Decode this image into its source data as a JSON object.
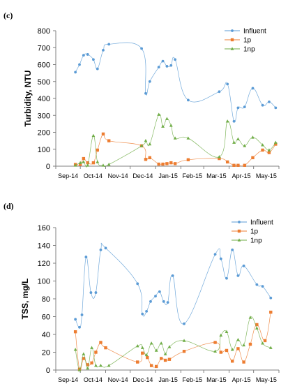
{
  "chart_data": [
    {
      "type": "line",
      "panel_label": "(c)",
      "ylabel": "Turbidity, NTU",
      "xlabel": "",
      "ylim": [
        0,
        800
      ],
      "yticks": [
        0,
        100,
        200,
        300,
        400,
        500,
        600,
        700,
        800
      ],
      "xlim": [
        "2014-09-01",
        "2015-06-01"
      ],
      "xticks": [
        "Sep-14",
        "Oct-14",
        "Nov-14",
        "Dec-14",
        "Jan-15",
        "Feb-15",
        "Mar-15",
        "Apr-15",
        "May-15"
      ],
      "legend_position": "top-right",
      "grid": false,
      "series": [
        {
          "name": "Influent",
          "color": "#5b9bd5",
          "marker": "circle",
          "points": [
            [
              "2014-09-25",
              555
            ],
            [
              "2014-09-30",
              600
            ],
            [
              "2014-10-05",
              655
            ],
            [
              "2014-10-10",
              660
            ],
            [
              "2014-10-17",
              630
            ],
            [
              "2014-10-22",
              575
            ],
            [
              "2014-10-29",
              685
            ],
            [
              "2014-11-05",
              720
            ],
            [
              "2014-12-15",
              695
            ],
            [
              "2014-12-20",
              430
            ],
            [
              "2014-12-25",
              500
            ],
            [
              "2015-01-05",
              585
            ],
            [
              "2015-01-10",
              620
            ],
            [
              "2015-01-15",
              590
            ],
            [
              "2015-01-20",
              595
            ],
            [
              "2015-01-25",
              630
            ],
            [
              "2015-02-10",
              390
            ],
            [
              "2015-03-20",
              440
            ],
            [
              "2015-03-30",
              485
            ],
            [
              "2015-04-07",
              265
            ],
            [
              "2015-04-12",
              345
            ],
            [
              "2015-04-20",
              350
            ],
            [
              "2015-04-30",
              460
            ],
            [
              "2015-05-12",
              360
            ],
            [
              "2015-05-20",
              380
            ],
            [
              "2015-05-28",
              345
            ]
          ]
        },
        {
          "name": "1p",
          "color": "#ed7d31",
          "marker": "square",
          "points": [
            [
              "2014-09-25",
              10
            ],
            [
              "2014-10-01",
              10
            ],
            [
              "2014-10-05",
              45
            ],
            [
              "2014-10-10",
              20
            ],
            [
              "2014-10-17",
              20
            ],
            [
              "2014-10-22",
              95
            ],
            [
              "2014-10-29",
              190
            ],
            [
              "2014-11-05",
              150
            ],
            [
              "2014-12-15",
              120
            ],
            [
              "2014-12-20",
              40
            ],
            [
              "2014-12-25",
              50
            ],
            [
              "2015-01-05",
              12
            ],
            [
              "2015-01-10",
              12
            ],
            [
              "2015-01-15",
              15
            ],
            [
              "2015-01-20",
              20
            ],
            [
              "2015-01-25",
              15
            ],
            [
              "2015-02-10",
              38
            ],
            [
              "2015-03-20",
              45
            ],
            [
              "2015-03-30",
              25
            ],
            [
              "2015-04-07",
              5
            ],
            [
              "2015-04-12",
              5
            ],
            [
              "2015-04-20",
              5
            ],
            [
              "2015-04-30",
              50
            ],
            [
              "2015-05-12",
              95
            ],
            [
              "2015-05-20",
              80
            ],
            [
              "2015-05-28",
              130
            ]
          ]
        },
        {
          "name": "1np",
          "color": "#70ad47",
          "marker": "triangle",
          "points": [
            [
              "2014-09-25",
              5
            ],
            [
              "2014-10-01",
              20
            ],
            [
              "2014-10-05",
              25
            ],
            [
              "2014-10-10",
              5
            ],
            [
              "2014-10-17",
              180
            ],
            [
              "2014-10-22",
              25
            ],
            [
              "2014-10-29",
              5
            ],
            [
              "2014-11-05",
              10
            ],
            [
              "2014-12-15",
              120
            ],
            [
              "2014-12-20",
              150
            ],
            [
              "2014-12-25",
              130
            ],
            [
              "2015-01-05",
              305
            ],
            [
              "2015-01-10",
              235
            ],
            [
              "2015-01-15",
              280
            ],
            [
              "2015-01-20",
              240
            ],
            [
              "2015-01-25",
              165
            ],
            [
              "2015-02-10",
              165
            ],
            [
              "2015-03-20",
              55
            ],
            [
              "2015-03-30",
              265
            ],
            [
              "2015-04-07",
              140
            ],
            [
              "2015-04-12",
              160
            ],
            [
              "2015-04-20",
              120
            ],
            [
              "2015-04-30",
              170
            ],
            [
              "2015-05-12",
              125
            ],
            [
              "2015-05-20",
              95
            ],
            [
              "2015-05-28",
              140
            ]
          ]
        }
      ]
    },
    {
      "type": "line",
      "panel_label": "(d)",
      "ylabel": "TSS, mg/L",
      "xlabel": "",
      "ylim": [
        0,
        160
      ],
      "yticks": [
        0,
        20,
        40,
        60,
        80,
        100,
        120,
        140,
        160
      ],
      "xlim": [
        "2014-09-01",
        "2015-06-01"
      ],
      "xticks": [
        "Sep-14",
        "Oct-14",
        "Nov-14",
        "Dec-14",
        "Jan-15",
        "Feb-15",
        "Mar-15",
        "Apr-15",
        "May-15"
      ],
      "legend_position": "top-right",
      "grid": false,
      "series": [
        {
          "name": "Influent",
          "color": "#5b9bd5",
          "marker": "circle",
          "points": [
            [
              "2014-09-25",
              57
            ],
            [
              "2014-09-30",
              48
            ],
            [
              "2014-10-03",
              62
            ],
            [
              "2014-10-08",
              127
            ],
            [
              "2014-10-14",
              87
            ],
            [
              "2014-10-20",
              87
            ],
            [
              "2014-10-26",
              135
            ],
            [
              "2014-11-01",
              137
            ],
            [
              "2014-12-10",
              97
            ],
            [
              "2014-12-16",
              63
            ],
            [
              "2014-12-21",
              66
            ],
            [
              "2014-12-26",
              77
            ],
            [
              "2015-01-01",
              83
            ],
            [
              "2015-01-06",
              88
            ],
            [
              "2015-01-11",
              77
            ],
            [
              "2015-01-16",
              76
            ],
            [
              "2015-01-22",
              106
            ],
            [
              "2015-02-05",
              52
            ],
            [
              "2015-03-15",
              130
            ],
            [
              "2015-03-22",
              125
            ],
            [
              "2015-03-29",
              103
            ],
            [
              "2015-04-05",
              135
            ],
            [
              "2015-04-12",
              106
            ],
            [
              "2015-04-19",
              117
            ],
            [
              "2015-05-05",
              96
            ],
            [
              "2015-05-12",
              94
            ],
            [
              "2015-05-22",
              81
            ]
          ]
        },
        {
          "name": "1p",
          "color": "#ed7d31",
          "marker": "square",
          "points": [
            [
              "2014-09-25",
              43
            ],
            [
              "2014-09-30",
              1
            ],
            [
              "2014-10-05",
              13
            ],
            [
              "2014-10-10",
              6
            ],
            [
              "2014-10-15",
              8
            ],
            [
              "2014-10-20",
              20
            ],
            [
              "2014-10-26",
              31
            ],
            [
              "2014-11-01",
              25
            ],
            [
              "2014-12-10",
              9
            ],
            [
              "2014-12-16",
              19
            ],
            [
              "2014-12-22",
              14
            ],
            [
              "2014-12-27",
              5
            ],
            [
              "2015-01-02",
              4
            ],
            [
              "2015-01-08",
              13
            ],
            [
              "2015-01-13",
              11
            ],
            [
              "2015-01-18",
              12
            ],
            [
              "2015-02-05",
              21
            ],
            [
              "2015-03-15",
              31
            ],
            [
              "2015-03-22",
              20
            ],
            [
              "2015-03-29",
              22
            ],
            [
              "2015-04-05",
              10
            ],
            [
              "2015-04-12",
              24
            ],
            [
              "2015-04-19",
              9
            ],
            [
              "2015-04-27",
              29
            ],
            [
              "2015-05-05",
              51
            ],
            [
              "2015-05-15",
              33
            ],
            [
              "2015-05-22",
              65
            ]
          ]
        },
        {
          "name": "1np",
          "color": "#70ad47",
          "marker": "triangle",
          "points": [
            [
              "2014-09-25",
              23
            ],
            [
              "2014-09-30",
              0
            ],
            [
              "2014-10-05",
              18
            ],
            [
              "2014-10-10",
              2
            ],
            [
              "2014-10-15",
              25
            ],
            [
              "2014-10-20",
              5
            ],
            [
              "2014-10-26",
              5
            ],
            [
              "2014-11-05",
              5
            ],
            [
              "2014-12-10",
              27
            ],
            [
              "2014-12-16",
              25
            ],
            [
              "2014-12-21",
              17
            ],
            [
              "2014-12-27",
              30
            ],
            [
              "2015-01-02",
              22
            ],
            [
              "2015-01-08",
              30
            ],
            [
              "2015-01-13",
              18
            ],
            [
              "2015-01-18",
              26
            ],
            [
              "2015-02-05",
              33
            ],
            [
              "2015-03-15",
              21
            ],
            [
              "2015-03-22",
              39
            ],
            [
              "2015-03-29",
              43
            ],
            [
              "2015-04-05",
              23
            ],
            [
              "2015-04-12",
              34
            ],
            [
              "2015-04-19",
              28
            ],
            [
              "2015-04-27",
              59
            ],
            [
              "2015-05-05",
              47
            ],
            [
              "2015-05-12",
              30
            ],
            [
              "2015-05-22",
              25
            ]
          ]
        }
      ]
    }
  ]
}
